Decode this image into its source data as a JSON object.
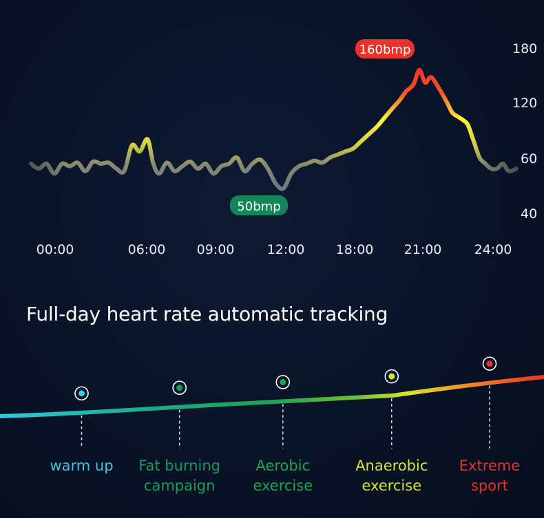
{
  "chart_data": {
    "type": "line",
    "x_ticks": [
      "00:00",
      "06:00",
      "09:00",
      "12:00",
      "18:00",
      "21:00",
      "24:00"
    ],
    "y_ticks": [
      180,
      120,
      60,
      40
    ],
    "series": [
      {
        "points": [
          [
            0.0,
            60
          ],
          [
            0.4,
            58
          ],
          [
            0.8,
            60
          ],
          [
            1.2,
            56
          ],
          [
            1.6,
            60
          ],
          [
            2.0,
            59
          ],
          [
            2.4,
            61
          ],
          [
            2.8,
            57
          ],
          [
            3.2,
            62
          ],
          [
            3.6,
            60
          ],
          [
            4.0,
            61
          ],
          [
            4.4,
            58
          ],
          [
            4.8,
            57
          ],
          [
            5.2,
            78
          ],
          [
            5.6,
            72
          ],
          [
            6.0,
            84
          ],
          [
            6.3,
            60
          ],
          [
            6.6,
            56
          ],
          [
            7.0,
            61
          ],
          [
            7.4,
            57
          ],
          [
            7.8,
            59
          ],
          [
            8.2,
            62
          ],
          [
            8.6,
            58
          ],
          [
            9.0,
            60
          ],
          [
            9.4,
            56
          ],
          [
            9.8,
            59
          ],
          [
            10.2,
            60
          ],
          [
            10.6,
            66
          ],
          [
            11.0,
            57
          ],
          [
            11.4,
            60
          ],
          [
            11.8,
            64
          ],
          [
            12.2,
            58
          ],
          [
            12.6,
            52
          ],
          [
            13.0,
            50
          ],
          [
            13.4,
            56
          ],
          [
            13.8,
            59
          ],
          [
            14.2,
            60
          ],
          [
            14.6,
            63
          ],
          [
            15.0,
            61
          ],
          [
            15.4,
            66
          ],
          [
            15.8,
            69
          ],
          [
            16.2,
            72
          ],
          [
            16.6,
            75
          ],
          [
            17.0,
            82
          ],
          [
            17.4,
            89
          ],
          [
            17.8,
            96
          ],
          [
            18.2,
            105
          ],
          [
            18.6,
            114
          ],
          [
            19.0,
            123
          ],
          [
            19.3,
            132
          ],
          [
            19.7,
            140
          ],
          [
            20.0,
            156
          ],
          [
            20.3,
            142
          ],
          [
            20.6,
            148
          ],
          [
            21.0,
            136
          ],
          [
            21.4,
            121
          ],
          [
            21.7,
            110
          ],
          [
            22.0,
            106
          ],
          [
            22.3,
            102
          ],
          [
            22.5,
            98
          ],
          [
            22.8,
            82
          ],
          [
            23.1,
            66
          ],
          [
            23.4,
            60
          ],
          [
            23.7,
            58
          ],
          [
            24.0,
            58
          ],
          [
            24.3,
            60
          ],
          [
            24.6,
            57
          ],
          [
            25.0,
            58
          ]
        ]
      }
    ],
    "annotations": [
      {
        "text": "160bmp",
        "x": 20.0,
        "y": 160
      },
      {
        "text": "50bmp",
        "x": 13.0,
        "y": 50
      }
    ],
    "grid": false,
    "colors": {
      "low": "#7a7f6e",
      "mid": "#fff436",
      "high": "#f4502a",
      "peak": "#e8322a"
    }
  },
  "headline": "Full-day heart rate automatic tracking",
  "zones": [
    {
      "label": "warm up",
      "color": "#3bc6e8",
      "t": 0.15
    },
    {
      "label": "Fat burning\ncampaign",
      "color": "#1a9a5e",
      "t": 0.33
    },
    {
      "label": "Aerobic\nexercise",
      "color": "#1fa451",
      "t": 0.52
    },
    {
      "label": "Anaerobic\nexercise",
      "color": "#d4e22a",
      "t": 0.72
    },
    {
      "label": "Extreme\nsport",
      "color": "#e8302c",
      "t": 0.9
    }
  ]
}
